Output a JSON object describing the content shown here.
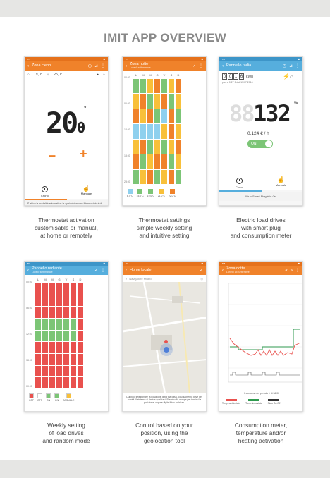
{
  "title": "IMIT APP OVERVIEW",
  "screens": [
    {
      "caption": [
        "Thermostat activation",
        "customisable or manual,",
        "at home or remotely"
      ],
      "bar_title": "Zona cieno",
      "temp_in": "19,0°",
      "temp_out": "25,0°",
      "setpoint": "20",
      "setpoint_dec": "0",
      "minus": "–",
      "plus": "+",
      "tab1": "Crono",
      "tab2": "Manuale",
      "note": "È attiva la modalità automatica: le opzioni ricevono il termostato è di..."
    },
    {
      "caption": [
        "Thermostat settings",
        "simple weekly setting",
        "and intuitive setting"
      ],
      "bar_title": "Zona notte",
      "bar_sub": "Lunedì settimanale",
      "days": [
        "L",
        "M",
        "M",
        "G",
        "V",
        "S",
        "D"
      ],
      "times": [
        "00:00",
        "06:00",
        "12:00",
        "18:00",
        "23:00"
      ],
      "legend": [
        "B,0°C",
        "15,0°C",
        "19,0°C",
        "21,0°C",
        "22,0°C"
      ]
    },
    {
      "caption": [
        "Electric load drives",
        "with smart plug",
        "and consumption meter"
      ],
      "bar_title": "Pannello radia...",
      "kwh_digits": [
        "0",
        "0",
        "1",
        "6"
      ],
      "kwh_unit": "kWh",
      "kwh_note": "pari a 0,27 € dal 17/07/2016",
      "watts": "132",
      "watts_unit": "W",
      "rate": "0,124 € / h",
      "toggle": "ON",
      "tab1": "Crono",
      "tab2": "Manuale",
      "note": "Il tuo Smart Plug è in On"
    },
    {
      "caption": [
        "Weekly setting",
        "of load drives",
        "and random mode"
      ],
      "bar_title": "Pannello radiante",
      "bar_sub": "Lunedì settimanale",
      "days": [
        "L",
        "M",
        "M",
        "G",
        "V",
        "S",
        "D"
      ],
      "times": [
        "00:00",
        "06:00",
        "12:00",
        "18:00",
        "00:00"
      ],
      "legend": [
        "OFF",
        "OFF",
        "ON",
        "ON",
        "CASUALE"
      ]
    },
    {
      "caption": [
        "Control based on your",
        "position, using the",
        "geolocation tool"
      ],
      "bar_title": "Home locale",
      "search": "Navigatore Milano",
      "note": "Qui puoi selezionare la posizione della tua casa, così sapremo dove per fornirti. Il sistema ci darà a qualsiasi. Premi sulla mappa per fornirci la posizione, oppure digita il tuo indirizzo."
    },
    {
      "caption": [
        "Consumption meter,",
        "temperature and/or",
        "heating activation"
      ],
      "bar_title": "Zona notte",
      "bar_sub": "Lunedì 15 Settembre",
      "stats": "Il consumo del periodo è di 36,0h",
      "legend": [
        "Temp. ambientale",
        "Temp. impostata",
        "Stato On-Off"
      ]
    }
  ],
  "colors": {
    "orange": "#f0822a",
    "blue": "#56aedd",
    "red": "#e9514e",
    "green": "#7cc576",
    "yellow": "#f8c03a",
    "lightblue": "#8fd0ee"
  }
}
